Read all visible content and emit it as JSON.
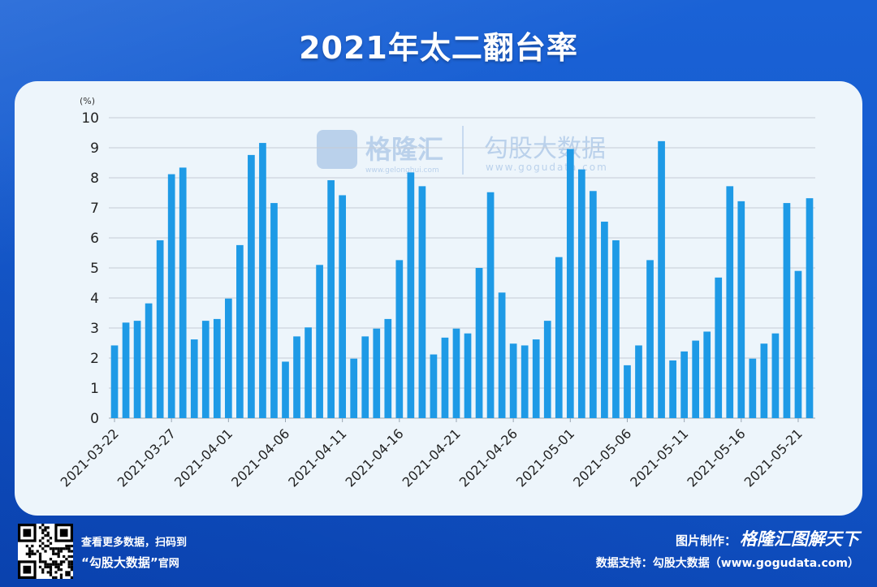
{
  "header": {
    "title": "2021年太二翻台率"
  },
  "chart_data": {
    "type": "bar",
    "ylabel": "(%)",
    "ylim": [
      0,
      10
    ],
    "yticks": [
      0,
      1,
      2,
      3,
      4,
      5,
      6,
      7,
      8,
      9,
      10
    ],
    "grid": true,
    "bar_color": "#1e9ae6",
    "x_tick_labels": [
      "2021-03-22",
      "2021-03-27",
      "2021-04-01",
      "2021-04-06",
      "2021-04-11",
      "2021-04-16",
      "2021-04-21",
      "2021-04-26",
      "2021-05-01",
      "2021-05-06",
      "2021-05-11",
      "2021-05-16",
      "2021-05-21"
    ],
    "categories": [
      "2021-03-22",
      "2021-03-23",
      "2021-03-24",
      "2021-03-25",
      "2021-03-26",
      "2021-03-27",
      "2021-03-28",
      "2021-03-29",
      "2021-03-30",
      "2021-03-31",
      "2021-04-01",
      "2021-04-02",
      "2021-04-03",
      "2021-04-04",
      "2021-04-05",
      "2021-04-06",
      "2021-04-07",
      "2021-04-08",
      "2021-04-09",
      "2021-04-10",
      "2021-04-11",
      "2021-04-12",
      "2021-04-13",
      "2021-04-14",
      "2021-04-15",
      "2021-04-16",
      "2021-04-17",
      "2021-04-18",
      "2021-04-19",
      "2021-04-20",
      "2021-04-21",
      "2021-04-22",
      "2021-04-23",
      "2021-04-24",
      "2021-04-25",
      "2021-04-26",
      "2021-04-27",
      "2021-04-28",
      "2021-04-29",
      "2021-04-30",
      "2021-05-01",
      "2021-05-02",
      "2021-05-03",
      "2021-05-04",
      "2021-05-05",
      "2021-05-06",
      "2021-05-07",
      "2021-05-08",
      "2021-05-09",
      "2021-05-10",
      "2021-05-11",
      "2021-05-12",
      "2021-05-13",
      "2021-05-14",
      "2021-05-15",
      "2021-05-16",
      "2021-05-17",
      "2021-05-18",
      "2021-05-19",
      "2021-05-20",
      "2021-05-21",
      "2021-05-22"
    ],
    "values": [
      2.42,
      3.18,
      3.24,
      3.82,
      5.92,
      8.12,
      8.34,
      2.62,
      3.24,
      3.3,
      3.98,
      5.76,
      8.76,
      9.16,
      7.16,
      1.88,
      2.72,
      3.02,
      5.1,
      7.92,
      7.42,
      1.98,
      2.72,
      2.98,
      3.3,
      5.26,
      8.18,
      7.72,
      2.12,
      2.68,
      2.98,
      2.82,
      5.0,
      7.52,
      4.18,
      2.48,
      2.42,
      2.62,
      3.24,
      5.36,
      8.96,
      8.28,
      7.56,
      6.54,
      5.92,
      1.76,
      2.42,
      5.26,
      9.22,
      1.92,
      2.22,
      2.58,
      2.88,
      4.68,
      7.72,
      7.22,
      1.98,
      2.48,
      2.82,
      7.16,
      4.9,
      7.32
    ]
  },
  "watermark": {
    "logo_text": "格隆汇",
    "logo_url": "www.gelonghui.com",
    "brand_text": "勾股大数据",
    "brand_url": "www.gogudata.com"
  },
  "footer": {
    "qr_line1": "查看更多数据，扫码到",
    "qr_line2": "“勾股大数据”",
    "qr_line2_suffix": "官网",
    "maker_label": "图片制作：",
    "maker_brand": "格隆汇图解天下",
    "source_text": "数据支持：勾股大数据（www.gogudata.com）",
    "corner_logo": "格隆汇"
  }
}
